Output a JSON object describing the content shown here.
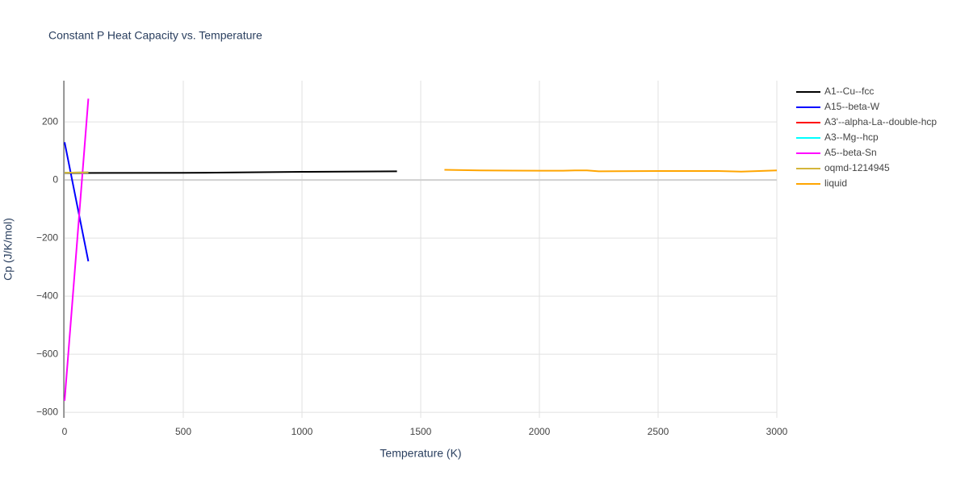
{
  "chart_data": {
    "type": "line",
    "title": "Constant P Heat Capacity vs. Temperature",
    "xlabel": "Temperature (K)",
    "ylabel": "Cp (J/K/mol)",
    "xlim": [
      0,
      3000
    ],
    "ylim": [
      -819,
      342
    ],
    "xticks": [
      0,
      500,
      1000,
      1500,
      2000,
      2500,
      3000
    ],
    "yticks": [
      {
        "value": -800,
        "label": "−800"
      },
      {
        "value": -600,
        "label": "−600"
      },
      {
        "value": -400,
        "label": "−400"
      },
      {
        "value": -200,
        "label": "−200"
      },
      0,
      200
    ],
    "grid": true,
    "legend": "right",
    "series": [
      {
        "name": "A1--Cu--fcc",
        "color": "#000000",
        "x": [
          0,
          500,
          1000,
          1400
        ],
        "values": [
          24,
          24.5,
          28,
          30
        ]
      },
      {
        "name": "A15--beta-W",
        "color": "#0000ff",
        "x": [
          0,
          100
        ],
        "values": [
          130,
          -280
        ]
      },
      {
        "name": "A3'--alpha-La--double-hcp",
        "color": "#ff0000",
        "x": [
          0,
          100
        ],
        "values": [
          25,
          26
        ]
      },
      {
        "name": "A3--Mg--hcp",
        "color": "#00ffff",
        "x": [
          0,
          100
        ],
        "values": [
          25,
          26
        ]
      },
      {
        "name": "A5--beta-Sn",
        "color": "#ff00ff",
        "x": [
          0,
          100
        ],
        "values": [
          -760,
          280
        ]
      },
      {
        "name": "oqmd-1214945",
        "color": "#d4b53a",
        "x": [
          0,
          100
        ],
        "values": [
          25,
          26
        ]
      },
      {
        "name": "liquid",
        "color": "#ffa500",
        "x": [
          1600,
          1750,
          2000,
          2100,
          2150,
          2200,
          2250,
          2500,
          2750,
          2850,
          3000
        ],
        "values": [
          35,
          33,
          32,
          32,
          33,
          33,
          30,
          31,
          31,
          29,
          33
        ]
      }
    ]
  }
}
